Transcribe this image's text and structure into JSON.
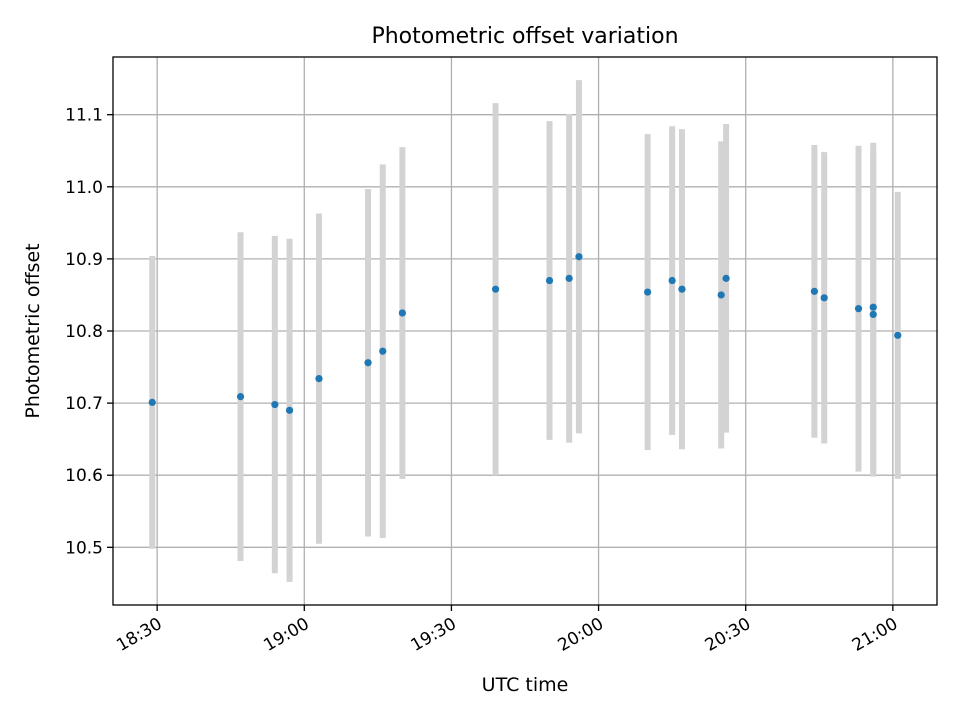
{
  "chart_data": {
    "type": "scatter",
    "title": "Photometric offset variation",
    "xlabel": "UTC time",
    "ylabel": "Photometric offset",
    "x_ticks": [
      "18:30",
      "19:00",
      "19:30",
      "20:00",
      "20:30",
      "21:00"
    ],
    "y_ticks": [
      "10.5",
      "10.6",
      "10.7",
      "10.8",
      "10.9",
      "11.0",
      "11.1"
    ],
    "xlim": [
      "18:21",
      "21:09"
    ],
    "ylim": [
      10.42,
      11.18
    ],
    "grid": true,
    "series": [
      {
        "marker_color": "#1f77b4",
        "errorbar_color": "#d3d3d3",
        "points": [
          {
            "x": "18:29",
            "y": 10.701,
            "yerr": 0.203
          },
          {
            "x": "18:47",
            "y": 10.709,
            "yerr": 0.228
          },
          {
            "x": "18:54",
            "y": 10.698,
            "yerr": 0.234
          },
          {
            "x": "18:57",
            "y": 10.69,
            "yerr": 0.238
          },
          {
            "x": "19:03",
            "y": 10.734,
            "yerr": 0.229
          },
          {
            "x": "19:13",
            "y": 10.756,
            "yerr": 0.241
          },
          {
            "x": "19:16",
            "y": 10.772,
            "yerr": 0.259
          },
          {
            "x": "19:20",
            "y": 10.825,
            "yerr": 0.23
          },
          {
            "x": "19:39",
            "y": 10.858,
            "yerr": 0.258
          },
          {
            "x": "19:50",
            "y": 10.87,
            "yerr": 0.221
          },
          {
            "x": "19:54",
            "y": 10.873,
            "yerr": 0.228
          },
          {
            "x": "19:56",
            "y": 10.903,
            "yerr": 0.245
          },
          {
            "x": "20:10",
            "y": 10.854,
            "yerr": 0.219
          },
          {
            "x": "20:15",
            "y": 10.87,
            "yerr": 0.214
          },
          {
            "x": "20:17",
            "y": 10.858,
            "yerr": 0.222
          },
          {
            "x": "20:25",
            "y": 10.85,
            "yerr": 0.213
          },
          {
            "x": "20:26",
            "y": 10.873,
            "yerr": 0.214
          },
          {
            "x": "20:44",
            "y": 10.855,
            "yerr": 0.203
          },
          {
            "x": "20:46",
            "y": 10.846,
            "yerr": 0.202
          },
          {
            "x": "20:53",
            "y": 10.831,
            "yerr": 0.226
          },
          {
            "x": "20:56",
            "y": 10.833,
            "yerr": 0.228
          },
          {
            "x": "20:56",
            "y": 10.823,
            "yerr": 0.225
          },
          {
            "x": "21:01",
            "y": 10.794,
            "yerr": 0.199
          }
        ]
      }
    ]
  }
}
